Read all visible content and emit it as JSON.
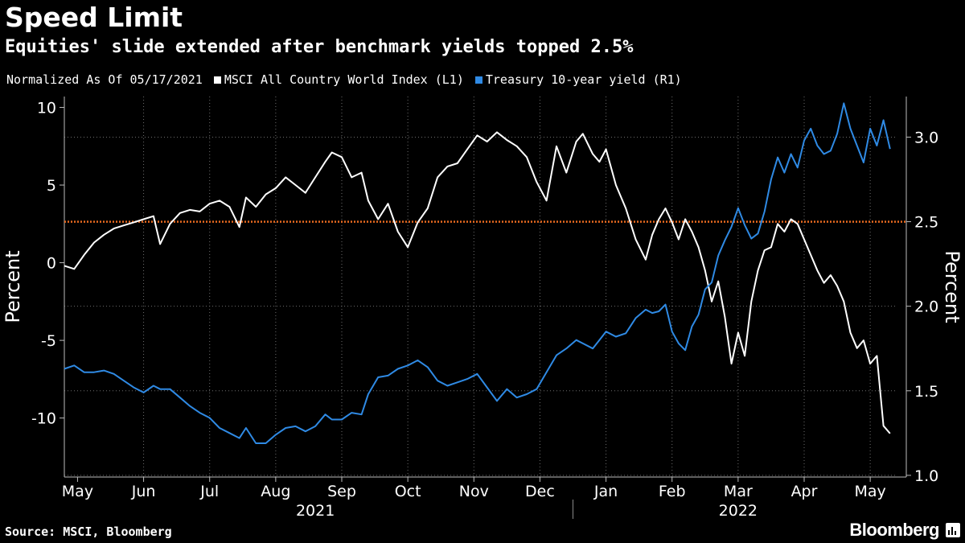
{
  "title": "Speed Limit",
  "subtitle": "Equities' slide extended after benchmark yields topped 2.5%",
  "footer": {
    "source": "Source: MSCI, Bloomberg",
    "brand": "Bloomberg"
  },
  "colors": {
    "msci": "#ffffff",
    "treasury": "#2f8ae4",
    "threshold": "#e8691f",
    "grid": "#6e6e6e"
  },
  "chart_data": {
    "type": "line",
    "title": "Speed Limit",
    "subtitle": "Equities' slide extended after benchmark yields topped 2.5%",
    "legend": [
      {
        "label": "Normalized As Of 05/17/2021",
        "swatch": false
      },
      {
        "label": "MSCI All Country World Index (L1)",
        "swatch": true,
        "color": "#ffffff"
      },
      {
        "label": "Treasury 10-year yield (R1)",
        "swatch": true,
        "color": "#2f8ae4"
      }
    ],
    "ylabel_left": "Percent",
    "ylabel_right": "Percent",
    "ylim_left": [
      -13.8,
      10.7
    ],
    "ylim_right": [
      0.99,
      3.24
    ],
    "yticks_left": [
      10,
      5,
      0,
      -5,
      -10
    ],
    "ytick_labels_left": [
      "10",
      "5",
      "0",
      "-5",
      "-10"
    ],
    "yticks_right": [
      3.0,
      2.5,
      2.0,
      1.5,
      1.0
    ],
    "ytick_labels_right": [
      "3.0",
      "2.5",
      "2.0",
      "1.5",
      "1.0"
    ],
    "x_domain": [
      0,
      12.6
    ],
    "xticks": [
      0.2,
      1.2,
      2.2,
      3.2,
      4.2,
      5.2,
      6.2,
      7.2,
      8.2,
      9.2,
      10.2,
      11.2,
      12.2
    ],
    "xtick_labels": [
      "May",
      "Jun",
      "Jul",
      "Aug",
      "Sep",
      "Oct",
      "Nov",
      "Dec",
      "Jan",
      "Feb",
      "Mar",
      "Apr",
      "May"
    ],
    "year_labels": [
      {
        "label": "2021",
        "x": 3.8
      },
      {
        "label": "2022",
        "x": 10.2
      }
    ],
    "year_divider_x": 7.7,
    "threshold": {
      "value": 2.5,
      "axis": "right"
    },
    "series": [
      {
        "name": "MSCI All Country World Index (L1)",
        "axis": "left",
        "x": [
          0,
          0.15,
          0.3,
          0.45,
          0.6,
          0.75,
          0.9,
          1.05,
          1.2,
          1.35,
          1.45,
          1.6,
          1.75,
          1.9,
          2.05,
          2.2,
          2.35,
          2.5,
          2.65,
          2.75,
          2.9,
          3.05,
          3.2,
          3.35,
          3.5,
          3.65,
          3.8,
          3.95,
          4.05,
          4.2,
          4.35,
          4.5,
          4.6,
          4.75,
          4.9,
          5.05,
          5.2,
          5.35,
          5.5,
          5.65,
          5.8,
          5.95,
          6.1,
          6.25,
          6.4,
          6.55,
          6.7,
          6.85,
          7.0,
          7.15,
          7.3,
          7.45,
          7.6,
          7.75,
          7.85,
          8.0,
          8.1,
          8.2,
          8.35,
          8.5,
          8.65,
          8.8,
          8.9,
          9.0,
          9.1,
          9.2,
          9.3,
          9.4,
          9.5,
          9.6,
          9.7,
          9.8,
          9.9,
          10.0,
          10.1,
          10.2,
          10.3,
          10.4,
          10.5,
          10.6,
          10.7,
          10.8,
          10.9,
          11.0,
          11.1,
          11.2,
          11.3,
          11.4,
          11.5,
          11.6,
          11.7,
          11.8,
          11.9,
          12.0,
          12.1,
          12.2,
          12.3,
          12.4,
          12.5
        ],
        "values": [
          -0.2,
          -0.4,
          0.5,
          1.3,
          1.8,
          2.2,
          2.4,
          2.6,
          2.8,
          3.0,
          1.2,
          2.5,
          3.2,
          3.4,
          3.3,
          3.8,
          4.0,
          3.6,
          2.3,
          4.2,
          3.6,
          4.4,
          4.8,
          5.5,
          5.0,
          4.5,
          5.5,
          6.5,
          7.1,
          6.8,
          5.5,
          5.8,
          4.0,
          2.8,
          3.8,
          2.0,
          1.0,
          2.6,
          3.5,
          5.5,
          6.2,
          6.4,
          7.3,
          8.2,
          7.8,
          8.4,
          7.9,
          7.5,
          6.8,
          5.2,
          4.0,
          7.5,
          5.8,
          7.8,
          8.3,
          7.0,
          6.5,
          7.3,
          5.0,
          3.5,
          1.5,
          0.2,
          1.8,
          2.8,
          3.5,
          2.6,
          1.5,
          2.8,
          2.0,
          1.0,
          -0.5,
          -2.5,
          -1.2,
          -3.5,
          -6.5,
          -4.5,
          -6.0,
          -2.5,
          -0.5,
          0.8,
          1.0,
          2.5,
          2.0,
          2.8,
          2.5,
          1.5,
          0.5,
          -0.5,
          -1.3,
          -0.8,
          -1.5,
          -2.5,
          -4.5,
          -5.5,
          -5.0,
          -6.5,
          -6.0,
          -10.5,
          -11.0
        ]
      },
      {
        "name": "Treasury 10-year yield (R1)",
        "axis": "right",
        "x": [
          0,
          0.15,
          0.3,
          0.45,
          0.6,
          0.75,
          0.9,
          1.05,
          1.2,
          1.35,
          1.45,
          1.6,
          1.75,
          1.9,
          2.05,
          2.2,
          2.35,
          2.5,
          2.65,
          2.75,
          2.9,
          3.05,
          3.2,
          3.35,
          3.5,
          3.65,
          3.8,
          3.95,
          4.05,
          4.2,
          4.35,
          4.5,
          4.6,
          4.75,
          4.9,
          5.05,
          5.2,
          5.35,
          5.5,
          5.65,
          5.8,
          5.95,
          6.1,
          6.25,
          6.4,
          6.55,
          6.7,
          6.85,
          7.0,
          7.15,
          7.3,
          7.45,
          7.6,
          7.75,
          7.85,
          8.0,
          8.1,
          8.2,
          8.35,
          8.5,
          8.65,
          8.8,
          8.9,
          9.0,
          9.1,
          9.2,
          9.3,
          9.4,
          9.5,
          9.6,
          9.7,
          9.8,
          9.9,
          10.0,
          10.1,
          10.2,
          10.3,
          10.4,
          10.5,
          10.6,
          10.7,
          10.8,
          10.9,
          11.0,
          11.1,
          11.2,
          11.3,
          11.4,
          11.5,
          11.6,
          11.7,
          11.8,
          11.9,
          12.0,
          12.1,
          12.2,
          12.3,
          12.4,
          12.5
        ],
        "values": [
          1.63,
          1.65,
          1.61,
          1.61,
          1.62,
          1.6,
          1.56,
          1.52,
          1.49,
          1.53,
          1.51,
          1.51,
          1.46,
          1.41,
          1.37,
          1.34,
          1.28,
          1.25,
          1.22,
          1.28,
          1.19,
          1.19,
          1.24,
          1.28,
          1.29,
          1.26,
          1.29,
          1.36,
          1.33,
          1.33,
          1.37,
          1.36,
          1.48,
          1.58,
          1.59,
          1.63,
          1.65,
          1.68,
          1.64,
          1.56,
          1.53,
          1.55,
          1.57,
          1.6,
          1.52,
          1.44,
          1.51,
          1.46,
          1.48,
          1.51,
          1.61,
          1.71,
          1.75,
          1.8,
          1.78,
          1.75,
          1.8,
          1.85,
          1.82,
          1.84,
          1.93,
          1.98,
          1.96,
          1.97,
          2.01,
          1.85,
          1.78,
          1.74,
          1.88,
          1.95,
          2.1,
          2.14,
          2.3,
          2.39,
          2.47,
          2.58,
          2.48,
          2.4,
          2.43,
          2.56,
          2.75,
          2.88,
          2.79,
          2.9,
          2.82,
          2.98,
          3.05,
          2.95,
          2.9,
          2.92,
          3.02,
          3.2,
          3.05,
          2.95,
          2.85,
          3.05,
          2.95,
          3.1,
          2.93
        ]
      }
    ]
  }
}
